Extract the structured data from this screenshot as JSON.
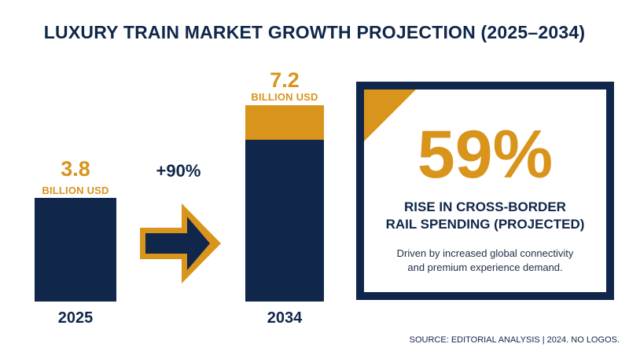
{
  "title": "LUXURY TRAIN MARKET GROWTH PROJECTION (2025–2034)",
  "colors": {
    "navy": "#10264a",
    "gold": "#d9941c"
  },
  "chart_data": {
    "type": "bar",
    "title": "LUXURY TRAIN MARKET GROWTH PROJECTION (2025–2034)",
    "categories": [
      "2025",
      "2034"
    ],
    "values": [
      3.8,
      7.2
    ],
    "value_labels": [
      "3.8",
      "7.2"
    ],
    "unit_labels": [
      "BILLION USD",
      "BILLION USD"
    ],
    "ylim": [
      0,
      7.2
    ],
    "grid": false
  },
  "growth": {
    "label": "+90%",
    "icon": "right-arrow-icon"
  },
  "stat": {
    "value": "59%",
    "line1": "RISE IN CROSS-BORDER",
    "line2": "RAIL SPENDING (PROJECTED)",
    "desc1": "Driven by increased global connectivity",
    "desc2": "and premium experience demand."
  },
  "source": "SOURCE: EDITORIAL ANALYSIS | 2024. NO LOGOS."
}
